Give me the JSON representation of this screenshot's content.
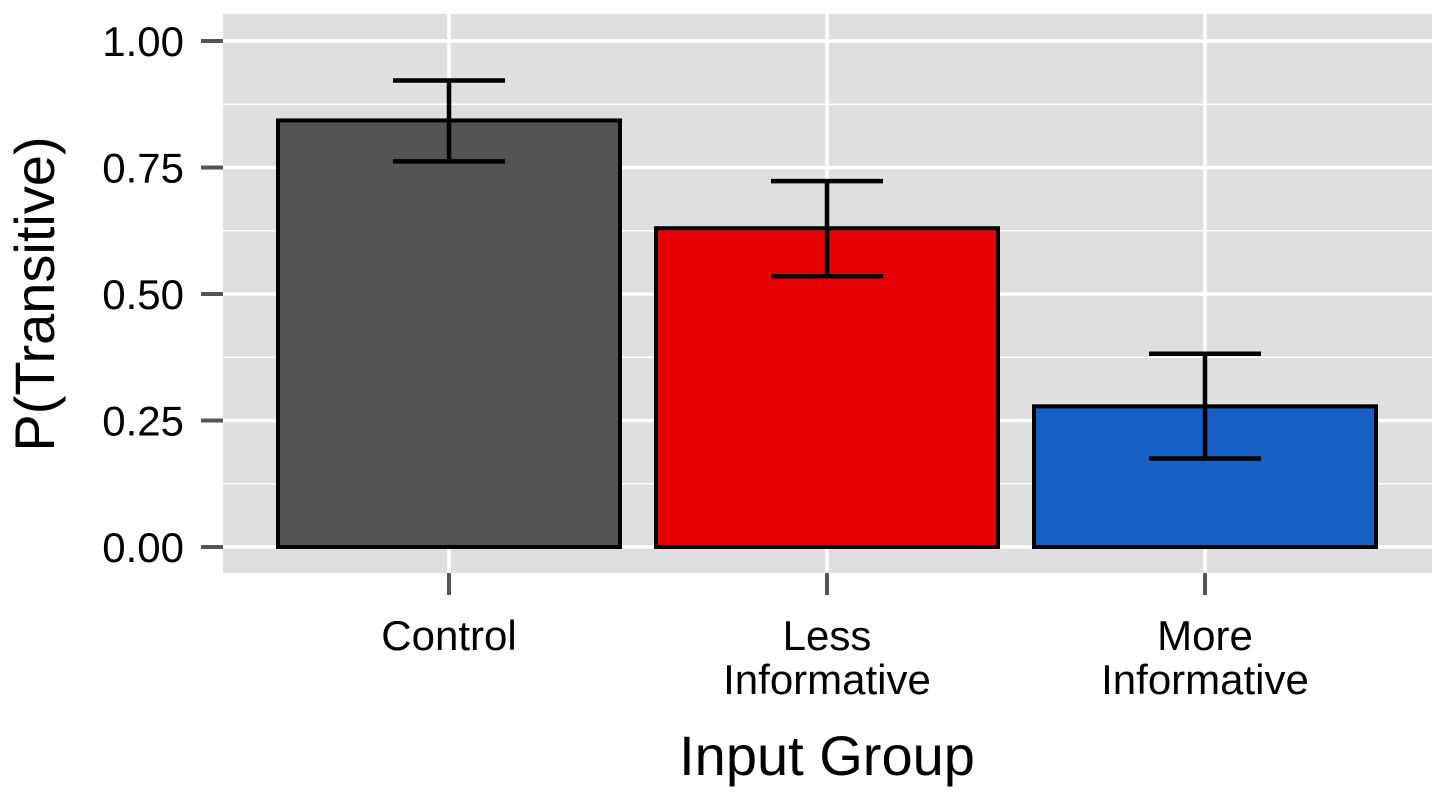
{
  "chart_data": {
    "type": "bar",
    "xlabel": "Input Group",
    "ylabel": "P(Transitive)",
    "ylim": [
      0,
      1.05
    ],
    "yticks": [
      "0.00",
      "0.25",
      "0.50",
      "0.75",
      "1.00"
    ],
    "categories": [
      [
        "Control"
      ],
      [
        "Less",
        "Informative"
      ],
      [
        "More",
        "Informative"
      ]
    ],
    "values": [
      0.843,
      0.63,
      0.278
    ],
    "error_low": [
      0.762,
      0.535,
      0.175
    ],
    "error_high": [
      0.922,
      0.723,
      0.382
    ],
    "colors": [
      "#545454",
      "#e50006",
      "#175fc3"
    ],
    "panel_background": "#dfdfdf",
    "grid": true
  }
}
